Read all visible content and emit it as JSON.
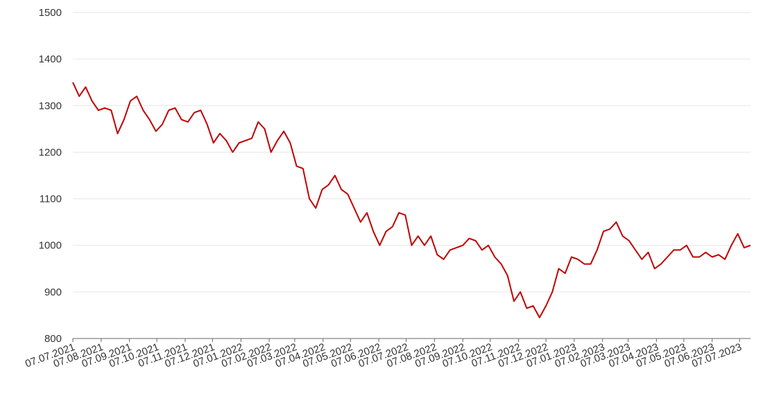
{
  "chart_data": {
    "type": "line",
    "x": [
      "07.07.2021",
      "14.07.2021",
      "21.07.2021",
      "28.07.2021",
      "04.08.2021",
      "11.08.2021",
      "18.08.2021",
      "25.08.2021",
      "01.09.2021",
      "08.09.2021",
      "15.09.2021",
      "22.09.2021",
      "29.09.2021",
      "06.10.2021",
      "13.10.2021",
      "20.10.2021",
      "27.10.2021",
      "03.11.2021",
      "10.11.2021",
      "17.11.2021",
      "24.11.2021",
      "01.12.2021",
      "08.12.2021",
      "15.12.2021",
      "22.12.2021",
      "29.12.2021",
      "05.01.2022",
      "12.01.2022",
      "19.01.2022",
      "26.01.2022",
      "02.02.2022",
      "09.02.2022",
      "16.02.2022",
      "23.02.2022",
      "02.03.2022",
      "09.03.2022",
      "16.03.2022",
      "23.03.2022",
      "30.03.2022",
      "06.04.2022",
      "13.04.2022",
      "20.04.2022",
      "27.04.2022",
      "04.05.2022",
      "11.05.2022",
      "18.05.2022",
      "25.05.2022",
      "01.06.2022",
      "08.06.2022",
      "15.06.2022",
      "22.06.2022",
      "29.06.2022",
      "06.07.2022",
      "13.07.2022",
      "20.07.2022",
      "27.07.2022",
      "03.08.2022",
      "10.08.2022",
      "17.08.2022",
      "24.08.2022",
      "31.08.2022",
      "07.09.2022",
      "14.09.2022",
      "21.09.2022",
      "28.09.2022",
      "05.10.2022",
      "12.10.2022",
      "19.10.2022",
      "26.10.2022",
      "02.11.2022",
      "09.11.2022",
      "16.11.2022",
      "23.11.2022",
      "30.11.2022",
      "07.12.2022",
      "14.12.2022",
      "21.12.2022",
      "28.12.2022",
      "04.01.2023",
      "11.01.2023",
      "18.01.2023",
      "25.01.2023",
      "01.02.2023",
      "08.02.2023",
      "15.02.2023",
      "22.02.2023",
      "01.03.2023",
      "08.03.2023",
      "15.03.2023",
      "22.03.2023",
      "29.03.2023",
      "05.04.2023",
      "12.04.2023",
      "19.04.2023",
      "26.04.2023",
      "03.05.2023",
      "10.05.2023",
      "17.05.2023",
      "24.05.2023",
      "31.05.2023",
      "07.06.2023",
      "14.06.2023",
      "21.06.2023",
      "28.06.2023",
      "05.07.2023",
      "12.07.2023",
      "19.07.2023"
    ],
    "series": [
      {
        "color": "#c00000",
        "values": [
          1350,
          1320,
          1340,
          1310,
          1290,
          1295,
          1290,
          1240,
          1270,
          1310,
          1320,
          1290,
          1270,
          1245,
          1260,
          1290,
          1295,
          1270,
          1265,
          1285,
          1290,
          1260,
          1220,
          1240,
          1225,
          1200,
          1220,
          1225,
          1230,
          1265,
          1250,
          1200,
          1225,
          1245,
          1220,
          1170,
          1165,
          1100,
          1080,
          1120,
          1130,
          1150,
          1120,
          1110,
          1080,
          1050,
          1070,
          1030,
          1000,
          1030,
          1040,
          1070,
          1065,
          1000,
          1020,
          1000,
          1020,
          980,
          970,
          990,
          995,
          1000,
          1015,
          1010,
          990,
          1000,
          975,
          960,
          935,
          880,
          900,
          865,
          870,
          845,
          870,
          900,
          950,
          940,
          975,
          970,
          960,
          960,
          990,
          1030,
          1035,
          1050,
          1020,
          1010,
          990,
          970,
          985,
          950,
          960,
          975,
          990,
          990,
          1000,
          975,
          975,
          985,
          975,
          980,
          970,
          1000,
          1025,
          995,
          1000
        ]
      }
    ],
    "xlim": [
      "07.07.2021",
      "19.07.2023"
    ],
    "xticks": [
      "07.07.2021",
      "07.08.2021",
      "07.09.2021",
      "07.10.2021",
      "07.11.2021",
      "07.12.2021",
      "07.01.2022",
      "07.02.2022",
      "07.03.2022",
      "07.04.2022",
      "07.05.2022",
      "07.06.2022",
      "07.07.2022",
      "07.08.2022",
      "07.09.2022",
      "07.10.2022",
      "07.11.2022",
      "07.12.2022",
      "07.01.2023",
      "07.02.2023",
      "07.03.2023",
      "07.04.2023",
      "07.05.2023",
      "07.06.2023",
      "07.07.2023"
    ],
    "ylim": [
      800,
      1500
    ],
    "yticks": [
      800,
      900,
      1000,
      1100,
      1200,
      1300,
      1400,
      1500
    ],
    "grid": true
  }
}
